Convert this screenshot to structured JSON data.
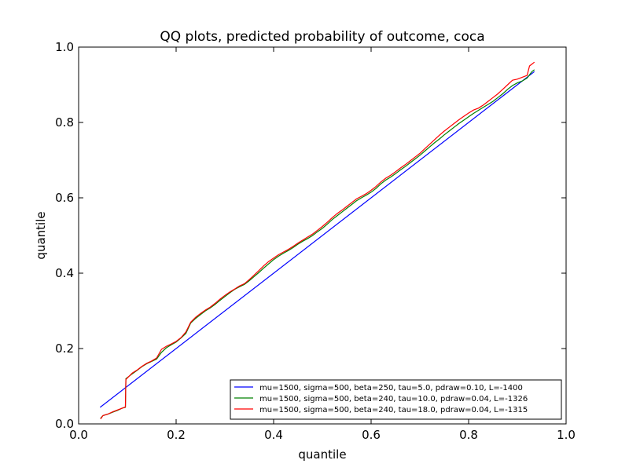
{
  "chart_data": {
    "type": "line",
    "title": "QQ plots, predicted probability of outcome, coca",
    "xlabel": "quantile",
    "ylabel": "quantile",
    "xlim": [
      0.0,
      1.0
    ],
    "ylim": [
      0.0,
      1.0
    ],
    "xticks": [
      "0.0",
      "0.2",
      "0.4",
      "0.6",
      "0.8",
      "1.0"
    ],
    "yticks": [
      "0.0",
      "0.2",
      "0.4",
      "0.6",
      "0.8",
      "1.0"
    ],
    "grid": false,
    "legend_position": "lower-right",
    "series": [
      {
        "name": "mu=1500, sigma=500, beta=250, tau=5.0, pdraw=0.10, L=-1400",
        "color": "#0000ff",
        "points": [
          [
            0.044,
            0.044
          ],
          [
            0.935,
            0.935
          ]
        ]
      },
      {
        "name": "mu=1500, sigma=500, beta=240, tau=10.0, pdraw=0.04, L=-1326",
        "color": "#008000",
        "points": [
          [
            0.045,
            0.015
          ],
          [
            0.05,
            0.022
          ],
          [
            0.06,
            0.026
          ],
          [
            0.07,
            0.031
          ],
          [
            0.08,
            0.036
          ],
          [
            0.09,
            0.042
          ],
          [
            0.096,
            0.044
          ],
          [
            0.097,
            0.12
          ],
          [
            0.11,
            0.133
          ],
          [
            0.12,
            0.142
          ],
          [
            0.13,
            0.152
          ],
          [
            0.14,
            0.16
          ],
          [
            0.15,
            0.166
          ],
          [
            0.16,
            0.172
          ],
          [
            0.17,
            0.19
          ],
          [
            0.18,
            0.202
          ],
          [
            0.19,
            0.21
          ],
          [
            0.2,
            0.217
          ],
          [
            0.21,
            0.228
          ],
          [
            0.22,
            0.24
          ],
          [
            0.23,
            0.268
          ],
          [
            0.24,
            0.28
          ],
          [
            0.25,
            0.29
          ],
          [
            0.26,
            0.3
          ],
          [
            0.27,
            0.308
          ],
          [
            0.28,
            0.317
          ],
          [
            0.29,
            0.328
          ],
          [
            0.3,
            0.338
          ],
          [
            0.31,
            0.348
          ],
          [
            0.32,
            0.357
          ],
          [
            0.33,
            0.364
          ],
          [
            0.34,
            0.37
          ],
          [
            0.35,
            0.38
          ],
          [
            0.36,
            0.391
          ],
          [
            0.37,
            0.402
          ],
          [
            0.38,
            0.414
          ],
          [
            0.39,
            0.425
          ],
          [
            0.4,
            0.436
          ],
          [
            0.41,
            0.445
          ],
          [
            0.42,
            0.453
          ],
          [
            0.43,
            0.46
          ],
          [
            0.44,
            0.468
          ],
          [
            0.45,
            0.477
          ],
          [
            0.46,
            0.485
          ],
          [
            0.47,
            0.492
          ],
          [
            0.48,
            0.5
          ],
          [
            0.49,
            0.51
          ],
          [
            0.5,
            0.519
          ],
          [
            0.51,
            0.53
          ],
          [
            0.52,
            0.542
          ],
          [
            0.53,
            0.552
          ],
          [
            0.54,
            0.562
          ],
          [
            0.55,
            0.572
          ],
          [
            0.56,
            0.582
          ],
          [
            0.57,
            0.592
          ],
          [
            0.58,
            0.6
          ],
          [
            0.59,
            0.607
          ],
          [
            0.6,
            0.615
          ],
          [
            0.61,
            0.625
          ],
          [
            0.62,
            0.637
          ],
          [
            0.63,
            0.647
          ],
          [
            0.64,
            0.655
          ],
          [
            0.65,
            0.664
          ],
          [
            0.66,
            0.674
          ],
          [
            0.67,
            0.683
          ],
          [
            0.68,
            0.693
          ],
          [
            0.69,
            0.703
          ],
          [
            0.7,
            0.713
          ],
          [
            0.71,
            0.724
          ],
          [
            0.72,
            0.735
          ],
          [
            0.73,
            0.746
          ],
          [
            0.74,
            0.756
          ],
          [
            0.75,
            0.767
          ],
          [
            0.76,
            0.777
          ],
          [
            0.77,
            0.787
          ],
          [
            0.78,
            0.797
          ],
          [
            0.79,
            0.806
          ],
          [
            0.8,
            0.815
          ],
          [
            0.81,
            0.824
          ],
          [
            0.82,
            0.832
          ],
          [
            0.83,
            0.84
          ],
          [
            0.84,
            0.848
          ],
          [
            0.85,
            0.856
          ],
          [
            0.86,
            0.866
          ],
          [
            0.87,
            0.876
          ],
          [
            0.88,
            0.888
          ],
          [
            0.89,
            0.898
          ],
          [
            0.9,
            0.905
          ],
          [
            0.91,
            0.91
          ],
          [
            0.92,
            0.918
          ],
          [
            0.93,
            0.935
          ],
          [
            0.935,
            0.94
          ]
        ]
      },
      {
        "name": "mu=1500, sigma=500, beta=240, tau=18.0, pdraw=0.04, L=-1315",
        "color": "#ff0000",
        "points": [
          [
            0.045,
            0.013
          ],
          [
            0.05,
            0.022
          ],
          [
            0.06,
            0.026
          ],
          [
            0.07,
            0.032
          ],
          [
            0.08,
            0.037
          ],
          [
            0.09,
            0.042
          ],
          [
            0.096,
            0.045
          ],
          [
            0.097,
            0.118
          ],
          [
            0.11,
            0.135
          ],
          [
            0.12,
            0.143
          ],
          [
            0.13,
            0.153
          ],
          [
            0.14,
            0.161
          ],
          [
            0.15,
            0.167
          ],
          [
            0.16,
            0.175
          ],
          [
            0.17,
            0.198
          ],
          [
            0.18,
            0.206
          ],
          [
            0.19,
            0.212
          ],
          [
            0.2,
            0.219
          ],
          [
            0.21,
            0.229
          ],
          [
            0.22,
            0.244
          ],
          [
            0.23,
            0.27
          ],
          [
            0.24,
            0.283
          ],
          [
            0.25,
            0.293
          ],
          [
            0.26,
            0.302
          ],
          [
            0.27,
            0.31
          ],
          [
            0.28,
            0.32
          ],
          [
            0.29,
            0.331
          ],
          [
            0.3,
            0.341
          ],
          [
            0.31,
            0.35
          ],
          [
            0.32,
            0.358
          ],
          [
            0.33,
            0.366
          ],
          [
            0.34,
            0.372
          ],
          [
            0.35,
            0.383
          ],
          [
            0.36,
            0.395
          ],
          [
            0.37,
            0.407
          ],
          [
            0.38,
            0.42
          ],
          [
            0.39,
            0.431
          ],
          [
            0.4,
            0.44
          ],
          [
            0.41,
            0.449
          ],
          [
            0.42,
            0.456
          ],
          [
            0.43,
            0.463
          ],
          [
            0.44,
            0.471
          ],
          [
            0.45,
            0.48
          ],
          [
            0.46,
            0.488
          ],
          [
            0.47,
            0.496
          ],
          [
            0.48,
            0.504
          ],
          [
            0.49,
            0.514
          ],
          [
            0.5,
            0.524
          ],
          [
            0.51,
            0.535
          ],
          [
            0.52,
            0.547
          ],
          [
            0.53,
            0.558
          ],
          [
            0.54,
            0.567
          ],
          [
            0.55,
            0.577
          ],
          [
            0.56,
            0.587
          ],
          [
            0.57,
            0.597
          ],
          [
            0.58,
            0.604
          ],
          [
            0.59,
            0.611
          ],
          [
            0.6,
            0.62
          ],
          [
            0.61,
            0.63
          ],
          [
            0.62,
            0.642
          ],
          [
            0.63,
            0.652
          ],
          [
            0.64,
            0.66
          ],
          [
            0.65,
            0.669
          ],
          [
            0.66,
            0.679
          ],
          [
            0.67,
            0.688
          ],
          [
            0.68,
            0.698
          ],
          [
            0.69,
            0.708
          ],
          [
            0.7,
            0.718
          ],
          [
            0.71,
            0.73
          ],
          [
            0.72,
            0.742
          ],
          [
            0.73,
            0.754
          ],
          [
            0.74,
            0.766
          ],
          [
            0.75,
            0.777
          ],
          [
            0.76,
            0.787
          ],
          [
            0.77,
            0.797
          ],
          [
            0.78,
            0.807
          ],
          [
            0.79,
            0.816
          ],
          [
            0.8,
            0.825
          ],
          [
            0.81,
            0.833
          ],
          [
            0.82,
            0.838
          ],
          [
            0.83,
            0.846
          ],
          [
            0.84,
            0.856
          ],
          [
            0.85,
            0.866
          ],
          [
            0.86,
            0.876
          ],
          [
            0.87,
            0.888
          ],
          [
            0.88,
            0.9
          ],
          [
            0.89,
            0.912
          ],
          [
            0.9,
            0.915
          ],
          [
            0.91,
            0.92
          ],
          [
            0.92,
            0.925
          ],
          [
            0.925,
            0.95
          ],
          [
            0.93,
            0.955
          ],
          [
            0.935,
            0.96
          ]
        ]
      }
    ]
  }
}
